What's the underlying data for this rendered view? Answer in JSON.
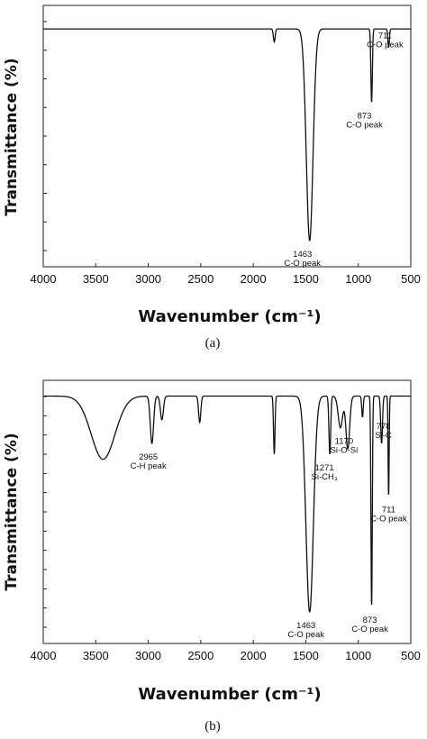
{
  "chart_data": [
    {
      "type": "line",
      "caption": "(a)",
      "xlabel": "Wavenumber (cm⁻¹)",
      "ylabel": "Transmittance (%)",
      "xlim": [
        4000,
        500
      ],
      "x_ticks": [
        "4000",
        "3500",
        "3000",
        "2500",
        "2000",
        "1500",
        "1000",
        "500"
      ],
      "y_tick_count": 9,
      "grid": false,
      "baseline": 91,
      "peaks": [
        {
          "x": 1800,
          "depth": 5,
          "width": 12
        },
        {
          "x": 1463,
          "depth": 81,
          "width": 45
        },
        {
          "x": 873,
          "depth": 28,
          "width": 10
        },
        {
          "x": 711,
          "depth": 7,
          "width": 10
        }
      ],
      "annotations": [
        {
          "x": 1463,
          "lines": [
            "1463",
            "C-O peak"
          ]
        },
        {
          "x": 873,
          "lines": [
            "873",
            "C-O peak"
          ]
        },
        {
          "x": 711,
          "lines": [
            "711",
            "C-O peak"
          ]
        }
      ]
    },
    {
      "type": "line",
      "caption": "(b)",
      "xlabel": "Wavenumber (cm⁻¹)",
      "ylabel": "Transmittance (%)",
      "xlim": [
        4000,
        500
      ],
      "x_ticks": [
        "4000",
        "3500",
        "3000",
        "2500",
        "2000",
        "1500",
        "1000",
        "500"
      ],
      "y_tick_count": 13,
      "grid": false,
      "baseline": 94,
      "peaks": [
        {
          "x": 3430,
          "depth": 24,
          "width": 160
        },
        {
          "x": 2965,
          "depth": 18,
          "width": 22
        },
        {
          "x": 2870,
          "depth": 9,
          "width": 20
        },
        {
          "x": 2510,
          "depth": 10,
          "width": 15
        },
        {
          "x": 1800,
          "depth": 22,
          "width": 10
        },
        {
          "x": 1463,
          "depth": 82,
          "width": 50
        },
        {
          "x": 1271,
          "depth": 22,
          "width": 12
        },
        {
          "x": 1170,
          "depth": 12,
          "width": 30
        },
        {
          "x": 1100,
          "depth": 20,
          "width": 25
        },
        {
          "x": 960,
          "depth": 8,
          "width": 10
        },
        {
          "x": 873,
          "depth": 80,
          "width": 9
        },
        {
          "x": 778,
          "depth": 18,
          "width": 12
        },
        {
          "x": 711,
          "depth": 38,
          "width": 7
        }
      ],
      "annotations": [
        {
          "x": 2965,
          "lines": [
            "2965",
            "C-H peak"
          ]
        },
        {
          "x": 1271,
          "lines": [
            "1271",
            "Si-CH₃"
          ]
        },
        {
          "x": 1170,
          "lines": [
            "1170",
            "Si-O-Si"
          ]
        },
        {
          "x": 778,
          "lines": [
            "778",
            "Si-C"
          ]
        },
        {
          "x": 711,
          "lines": [
            "711",
            "C-O peak"
          ]
        },
        {
          "x": 1463,
          "lines": [
            "1463",
            "C-O peak"
          ]
        },
        {
          "x": 873,
          "lines": [
            "873",
            "C-O peak"
          ]
        }
      ]
    }
  ]
}
